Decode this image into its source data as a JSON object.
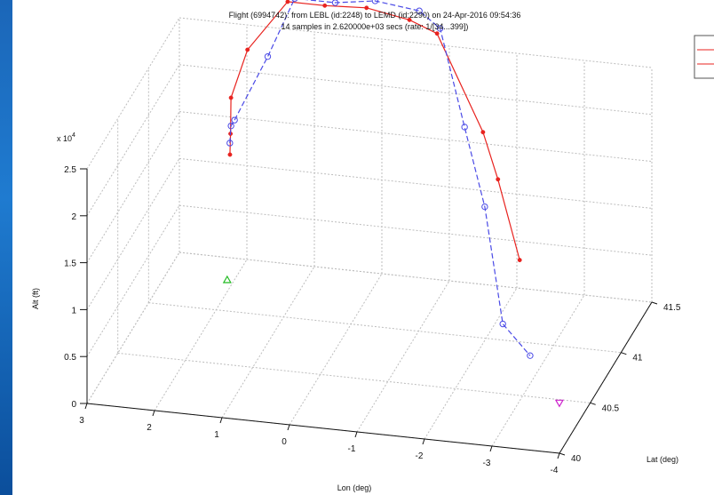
{
  "chart_data": {
    "type": "line3d",
    "title_line1": "Flight (6994742):  from LEBL (id:2248) to LEMD (id:2290) on 24-Apr-2016 09:54:36",
    "title_line2": "14 samples in 2.620000e+03 secs (rate: 1/[34...399])",
    "xlabel": "Lon (deg)",
    "ylabel": "Lat (deg)",
    "zlabel": "Alt (ft)",
    "z_exponent_label": "x 10",
    "z_exponent_power": "4",
    "x_ticks": [
      "3",
      "2",
      "1",
      "0",
      "-1",
      "-2",
      "-3",
      "-4"
    ],
    "y_ticks": [
      "40",
      "40.5",
      "41",
      "41.5"
    ],
    "z_ticks": [
      "0",
      "0.5",
      "1",
      "1.5",
      "2",
      "2.5"
    ],
    "xlim": [
      3,
      -4
    ],
    "ylim": [
      40,
      41.5
    ],
    "zlim": [
      0,
      25000
    ],
    "grid": "on",
    "legend_position": "top-right",
    "series": [
      {
        "color": "#e8231f",
        "style": "solid",
        "marker": "star",
        "points": [
          [
            2.05,
            41.28,
            13500
          ],
          [
            2.06,
            41.3,
            15500
          ],
          [
            2.08,
            41.33,
            19000
          ],
          [
            1.9,
            41.4,
            23500
          ],
          [
            1.35,
            41.45,
            28500
          ],
          [
            0.8,
            41.45,
            28500
          ],
          [
            0.2,
            41.47,
            28500
          ],
          [
            -0.5,
            41.4,
            28500
          ],
          [
            -1.0,
            41.3,
            28500
          ],
          [
            -2.0,
            40.95,
            22500
          ],
          [
            -2.45,
            40.7,
            20500
          ],
          [
            -3.0,
            40.45,
            15000
          ]
        ]
      },
      {
        "color": "#4a4ae6",
        "style": "dashed",
        "marker": "circle",
        "points": [
          [
            2.07,
            41.3,
            14500
          ],
          [
            2.08,
            41.33,
            16000
          ],
          [
            2.0,
            41.3,
            17000
          ],
          [
            1.6,
            41.4,
            23000
          ],
          [
            1.2,
            41.4,
            29500
          ],
          [
            0.6,
            41.4,
            29500
          ],
          [
            0.1,
            41.5,
            29000
          ],
          [
            -0.6,
            41.45,
            29000
          ],
          [
            -1.0,
            41.35,
            28500
          ],
          [
            -1.7,
            40.98,
            22500
          ],
          [
            -2.3,
            40.65,
            18000
          ],
          [
            -2.75,
            40.45,
            8000
          ],
          [
            -3.2,
            40.4,
            5500
          ]
        ]
      }
    ],
    "markers": [
      {
        "name": "origin",
        "color": "#22bb22",
        "shape": "triangle-up",
        "point": [
          2.1,
          41.29,
          0
        ]
      },
      {
        "name": "destination",
        "color": "#cc22cc",
        "shape": "triangle-down",
        "point": [
          -3.57,
          40.47,
          0
        ]
      }
    ]
  },
  "colors": {
    "window_bg": "#0a0a0a",
    "figure_bg": "#ffffff",
    "accent_strip": "#1f7bd0"
  }
}
